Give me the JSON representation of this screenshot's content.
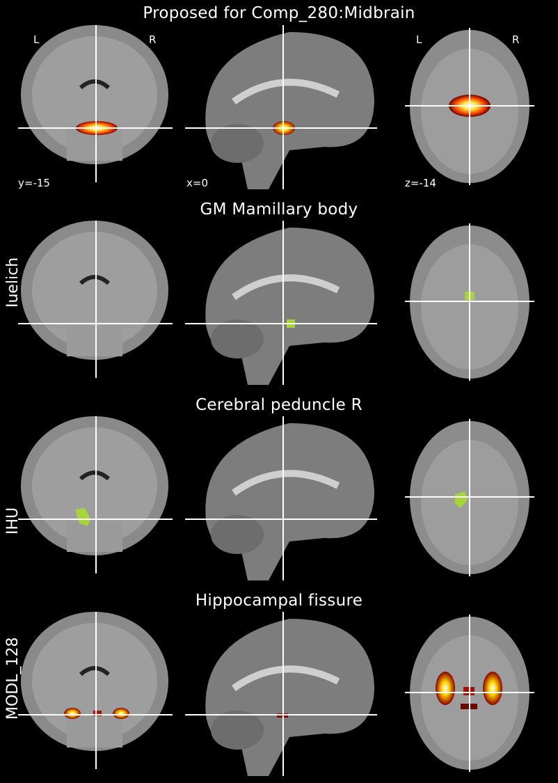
{
  "main_title": "Proposed for Comp_280:Midbrain",
  "orientation": {
    "left": "L",
    "right": "R"
  },
  "coords": {
    "y": "y=-15",
    "x": "x=0",
    "z": "z=-14"
  },
  "rows": [
    {
      "title": "",
      "side_label": ""
    },
    {
      "title": "GM Mamillary body",
      "side_label": "Iuelich"
    },
    {
      "title": "Cerebral peduncle R",
      "side_label": "IHU"
    },
    {
      "title": "Hippocampal fissure",
      "side_label": "MODL_128"
    }
  ],
  "colors": {
    "background": "#000000",
    "crosshair": "#ffffff",
    "atlas_overlay": "#a6d43a",
    "heat_hot": "#ffffff",
    "heat_mid": "#ffcc00",
    "heat_low": "#cc2200"
  }
}
